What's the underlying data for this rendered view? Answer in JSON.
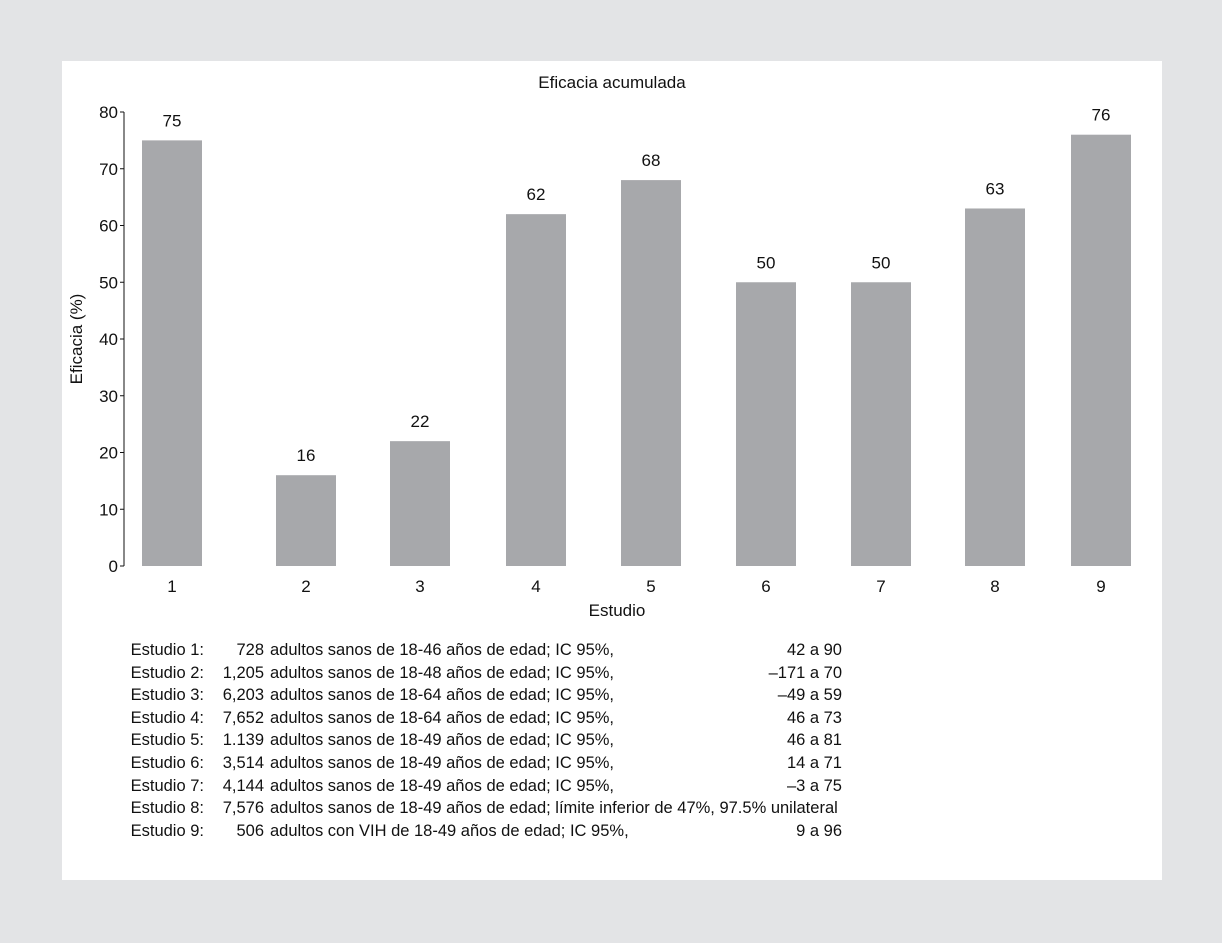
{
  "chart_data": {
    "type": "bar",
    "title": "Eficacia acumulada",
    "xlabel": "Estudio",
    "ylabel": "Eficacia (%)",
    "ylim": [
      0,
      80
    ],
    "yticks": [
      "0",
      "10",
      "20",
      "30",
      "40",
      "50",
      "60",
      "70",
      "80"
    ],
    "grid": false,
    "categories": [
      "1",
      "2",
      "3",
      "4",
      "5",
      "6",
      "7",
      "8",
      "9"
    ],
    "values": [
      75,
      16,
      22,
      62,
      68,
      50,
      50,
      63,
      76
    ],
    "data_labels": [
      "75",
      "16",
      "22",
      "62",
      "68",
      "50",
      "50",
      "63",
      "76"
    ],
    "bar_color": "#a7a8ab"
  },
  "notes": [
    {
      "study": "Estudio 1:",
      "n": "728",
      "desc": "adultos sanos de 18-46 años de edad; IC 95%,",
      "ci": "42 a 90"
    },
    {
      "study": "Estudio 2:",
      "n": "1,205",
      "desc": "adultos sanos de 18-48 años de edad; IC 95%,",
      "ci": "–171 a 70"
    },
    {
      "study": "Estudio 3:",
      "n": "6,203",
      "desc": "adultos sanos de 18-64 años de edad; IC 95%,",
      "ci": "–49 a 59"
    },
    {
      "study": "Estudio 4:",
      "n": "7,652",
      "desc": "adultos sanos de 18-64 años de edad; IC 95%,",
      "ci": "46 a 73"
    },
    {
      "study": "Estudio 5:",
      "n": "1.139",
      "desc": "adultos sanos de 18-49 años de edad; IC 95%,",
      "ci": "46 a 81"
    },
    {
      "study": "Estudio 6:",
      "n": "3,514",
      "desc": "adultos sanos de 18-49 años de edad; IC 95%,",
      "ci": "14 a 71"
    },
    {
      "study": "Estudio 7:",
      "n": "4,144",
      "desc": "adultos sanos de 18-49 años de edad; IC 95%,",
      "ci": "–3 a 75"
    },
    {
      "study": "Estudio 8:",
      "n": "7,576",
      "desc": "adultos sanos de 18-49 años de edad; límite inferior de 47%, 97.5% unilateral",
      "ci": ""
    },
    {
      "study": "Estudio 9:",
      "n": "506",
      "desc": "adultos con VIH de 18-49 años de edad; IC 95%,",
      "ci": "9 a 96"
    }
  ]
}
